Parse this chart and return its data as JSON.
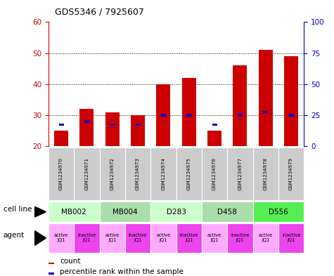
{
  "title": "GDS5346 / 7925607",
  "samples": [
    "GSM1234970",
    "GSM1234971",
    "GSM1234972",
    "GSM1234973",
    "GSM1234974",
    "GSM1234975",
    "GSM1234976",
    "GSM1234977",
    "GSM1234978",
    "GSM1234979"
  ],
  "count_values": [
    25,
    32,
    31,
    30,
    40,
    42,
    25,
    46,
    51,
    49
  ],
  "percentile_values": [
    27,
    28,
    27,
    27,
    30,
    30,
    27,
    30,
    31,
    30
  ],
  "bar_bottom": 20,
  "ylim": [
    20,
    60
  ],
  "ylim_right": [
    0,
    100
  ],
  "yticks_left": [
    20,
    30,
    40,
    50,
    60
  ],
  "yticks_right": [
    0,
    25,
    50,
    75,
    100
  ],
  "cell_lines": [
    {
      "label": "MB002",
      "span": [
        0,
        2
      ],
      "color": "#ccffcc"
    },
    {
      "label": "MB004",
      "span": [
        2,
        4
      ],
      "color": "#aaddaa"
    },
    {
      "label": "D283",
      "span": [
        4,
        6
      ],
      "color": "#ccffcc"
    },
    {
      "label": "D458",
      "span": [
        6,
        8
      ],
      "color": "#aaddaa"
    },
    {
      "label": "D556",
      "span": [
        8,
        10
      ],
      "color": "#55ee55"
    }
  ],
  "agents": [
    {
      "label": "active\nJQ1",
      "color": "#ffaaff"
    },
    {
      "label": "inactive\nJQ1",
      "color": "#ee44ee"
    },
    {
      "label": "active\nJQ1",
      "color": "#ffaaff"
    },
    {
      "label": "inactive\nJQ1",
      "color": "#ee44ee"
    },
    {
      "label": "active\nJQ1",
      "color": "#ffaaff"
    },
    {
      "label": "inactive\nJQ1",
      "color": "#ee44ee"
    },
    {
      "label": "active\nJQ1",
      "color": "#ffaaff"
    },
    {
      "label": "inactive\nJQ1",
      "color": "#ee44ee"
    },
    {
      "label": "active\nJQ1",
      "color": "#ffaaff"
    },
    {
      "label": "inactive\nJQ1",
      "color": "#ee44ee"
    }
  ],
  "bar_color": "#cc0000",
  "percentile_color": "#0000cc",
  "tick_label_color_left": "#cc0000",
  "tick_label_color_right": "#0000cc",
  "bar_width": 0.55,
  "sample_bg_color": "#cccccc",
  "legend_count_color": "#cc0000",
  "legend_percentile_color": "#0000cc",
  "grid_lines": [
    30,
    40,
    50
  ],
  "figure_bg": "#ffffff"
}
